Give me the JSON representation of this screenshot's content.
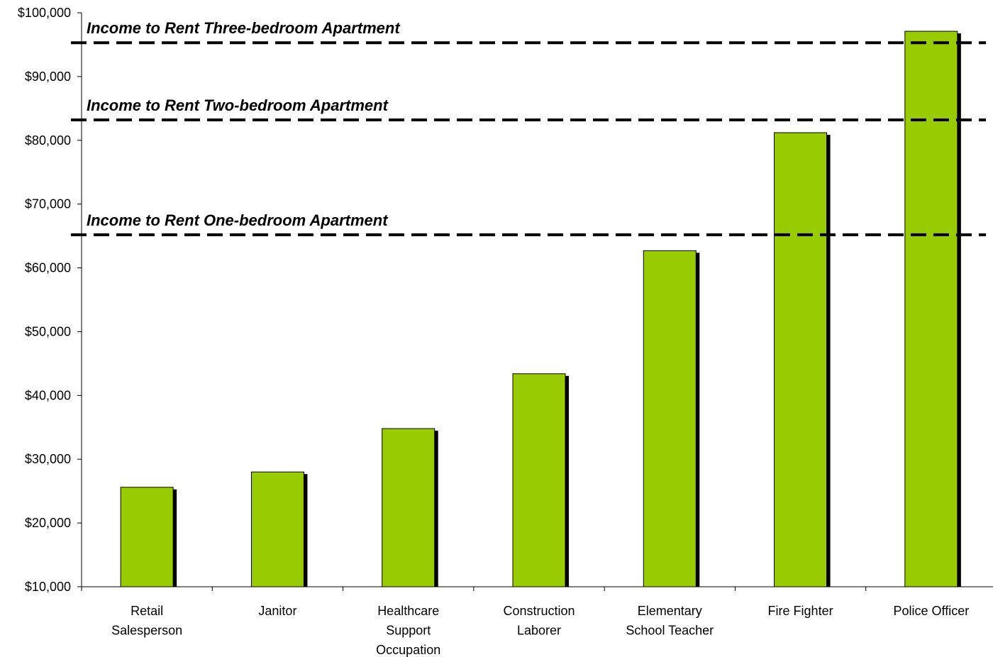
{
  "chart_data": {
    "type": "bar",
    "categories": [
      [
        "Retail",
        "Salesperson"
      ],
      [
        "Janitor"
      ],
      [
        "Healthcare",
        "Support",
        "Occupation"
      ],
      [
        "Construction",
        "Laborer"
      ],
      [
        "Elementary",
        "School Teacher"
      ],
      [
        "Fire Fighter"
      ],
      [
        "Police Officer"
      ]
    ],
    "values": [
      25600,
      28000,
      34800,
      43400,
      62700,
      81200,
      97100
    ],
    "ylim": [
      10000,
      100000
    ],
    "yticks": [
      10000,
      20000,
      30000,
      40000,
      50000,
      60000,
      70000,
      80000,
      90000,
      100000
    ],
    "ytick_labels": [
      "$10,000",
      "$20,000",
      "$30,000",
      "$40,000",
      "$50,000",
      "$60,000",
      "$70,000",
      "$80,000",
      "$90,000",
      "$100,000"
    ],
    "reference_lines": [
      {
        "label": "Income to Rent Three-bedroom Apartment",
        "value": 95300
      },
      {
        "label": "Income to Rent Two-bedroom Apartment",
        "value": 83200
      },
      {
        "label": "Income to Rent One-bedroom Apartment",
        "value": 65200
      }
    ],
    "title": "",
    "xlabel": "",
    "ylabel": "",
    "grid": false,
    "colors": {
      "bar": "#99cc00",
      "bar_border": "#000000",
      "shadow": "#000000",
      "ref_line": "#000000"
    }
  }
}
